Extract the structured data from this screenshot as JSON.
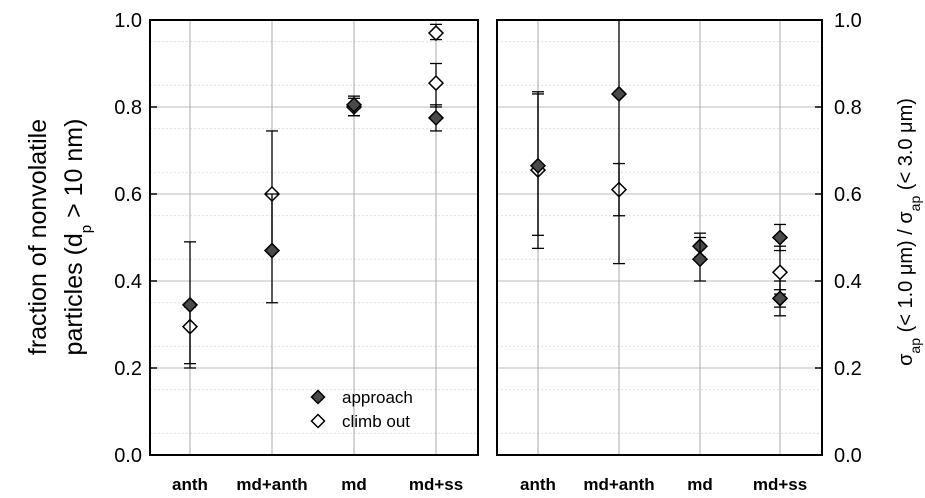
{
  "chart_data": [
    {
      "type": "scatter",
      "categories": [
        "anth",
        "md+anth",
        "md",
        "md+ss"
      ],
      "ylabel_line1": "fraction of nonvolatile",
      "ylabel_line2_pre": "particles (d",
      "ylabel_line2_sub": "p",
      "ylabel_line2_post": " > 10 nm)",
      "ylim": [
        0.0,
        1.0
      ],
      "yticks": [
        "0.0",
        "0.2",
        "0.4",
        "0.6",
        "0.8",
        "1.0"
      ],
      "grid": true,
      "legend": {
        "position": "bottom-right",
        "entries": [
          "approach",
          "climb out"
        ]
      },
      "series": [
        {
          "name": "approach",
          "marker": "filled-diamond",
          "color": "#4a4a4a",
          "points": [
            {
              "cat": "anth",
              "y": 0.345,
              "err": [
                0.21,
                0.49
              ]
            },
            {
              "cat": "md+anth",
              "y": 0.47,
              "err": [
                0.35,
                0.6
              ]
            },
            {
              "cat": "md",
              "y": 0.805,
              "err": [
                0.78,
                0.825
              ]
            },
            {
              "cat": "md+ss",
              "y": 0.775,
              "err": [
                0.745,
                0.805
              ]
            }
          ]
        },
        {
          "name": "climb out",
          "marker": "open-diamond",
          "color": "#ffffff",
          "points": [
            {
              "cat": "anth",
              "y": 0.295,
              "err": [
                0.2,
                0.34
              ]
            },
            {
              "cat": "md+anth",
              "y": 0.6,
              "err": [
                0.47,
                0.745
              ]
            },
            {
              "cat": "md",
              "y": 0.8,
              "err": [
                0.78,
                0.82
              ]
            },
            {
              "cat": "md+ss",
              "y": 0.855,
              "err": [
                0.8,
                0.9
              ]
            },
            {
              "cat": "md+ss",
              "y": 0.97,
              "err": [
                0.955,
                0.99
              ]
            }
          ]
        }
      ]
    },
    {
      "type": "scatter",
      "categories": [
        "anth",
        "md+anth",
        "md",
        "md+ss"
      ],
      "ylabel_parts": [
        "σ",
        "ap",
        " (< 1.0 μm)  /  σ",
        "ap",
        " (< 3.0 μm)"
      ],
      "ylim": [
        0.0,
        1.0
      ],
      "yticks": [
        "0.0",
        "0.2",
        "0.4",
        "0.6",
        "0.8",
        "1.0"
      ],
      "grid": true,
      "series": [
        {
          "name": "approach",
          "marker": "filled-diamond",
          "color": "#4a4a4a",
          "points": [
            {
              "cat": "anth",
              "y": 0.665,
              "err": [
                0.505,
                0.835
              ]
            },
            {
              "cat": "md+anth",
              "y": 0.83,
              "err": [
                0.55,
                1.0
              ]
            },
            {
              "cat": "md",
              "y": 0.48,
              "err": [
                0.455,
                0.51
              ]
            },
            {
              "cat": "md",
              "y": 0.45,
              "err": [
                0.4,
                0.5
              ]
            },
            {
              "cat": "md+ss",
              "y": 0.5,
              "err": [
                0.47,
                0.53
              ]
            },
            {
              "cat": "md+ss",
              "y": 0.36,
              "err": [
                0.32,
                0.4
              ]
            }
          ]
        },
        {
          "name": "climb out",
          "marker": "open-diamond",
          "color": "#ffffff",
          "points": [
            {
              "cat": "anth",
              "y": 0.655,
              "err": [
                0.475,
                0.83
              ]
            },
            {
              "cat": "md+anth",
              "y": 0.61,
              "err": [
                0.44,
                0.67
              ]
            },
            {
              "cat": "md+ss",
              "y": 0.42,
              "err": [
                0.37,
                0.48
              ]
            },
            {
              "cat": "md+ss",
              "y": 0.36,
              "err": [
                0.34,
                0.38
              ]
            }
          ]
        }
      ]
    }
  ]
}
